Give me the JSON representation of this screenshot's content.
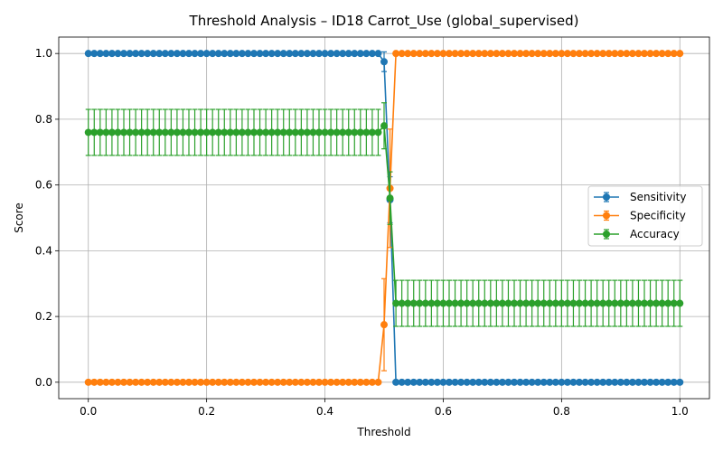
{
  "chart_data": {
    "type": "line",
    "title": "Threshold Analysis – ID18 Carrot_Use (global_supervised)",
    "xlabel": "Threshold",
    "ylabel": "Score",
    "xlim": [
      -0.05,
      1.05
    ],
    "ylim": [
      -0.05,
      1.05
    ],
    "xticks": [
      0.0,
      0.2,
      0.4,
      0.6,
      0.8,
      1.0
    ],
    "xtick_labels": [
      "0.0",
      "0.2",
      "0.4",
      "0.6",
      "0.8",
      "1.0"
    ],
    "yticks": [
      0.0,
      0.2,
      0.4,
      0.6,
      0.8,
      1.0
    ],
    "ytick_labels": [
      "0.0",
      "0.2",
      "0.4",
      "0.6",
      "0.8",
      "1.0"
    ],
    "grid": true,
    "legend_position": "right",
    "x": {
      "start": 0.0,
      "stop": 1.0,
      "step": 0.01
    },
    "series": [
      {
        "name": "Sensitivity",
        "color": "#1f77b4",
        "segments": [
          {
            "from": 0.0,
            "to": 0.49,
            "value": 1.0,
            "err": 0.0
          },
          {
            "from": 0.52,
            "to": 1.0,
            "value": 0.0,
            "err": 0.0
          }
        ],
        "points": [
          {
            "x": 0.5,
            "y": 0.975,
            "err": 0.03
          },
          {
            "x": 0.51,
            "y": 0.555,
            "err": 0.07
          }
        ]
      },
      {
        "name": "Specificity",
        "color": "#ff7f0e",
        "segments": [
          {
            "from": 0.0,
            "to": 0.49,
            "value": 0.0,
            "err": 0.0
          },
          {
            "from": 0.52,
            "to": 1.0,
            "value": 1.0,
            "err": 0.0
          }
        ],
        "points": [
          {
            "x": 0.5,
            "y": 0.175,
            "err": 0.14
          },
          {
            "x": 0.51,
            "y": 0.59,
            "err": 0.18
          }
        ]
      },
      {
        "name": "Accuracy",
        "color": "#2ca02c",
        "segments": [
          {
            "from": 0.0,
            "to": 0.49,
            "value": 0.76,
            "err": 0.07
          },
          {
            "from": 0.52,
            "to": 1.0,
            "value": 0.24,
            "err": 0.07
          }
        ],
        "points": [
          {
            "x": 0.5,
            "y": 0.78,
            "err": 0.07
          },
          {
            "x": 0.51,
            "y": 0.56,
            "err": 0.08
          }
        ]
      }
    ]
  }
}
